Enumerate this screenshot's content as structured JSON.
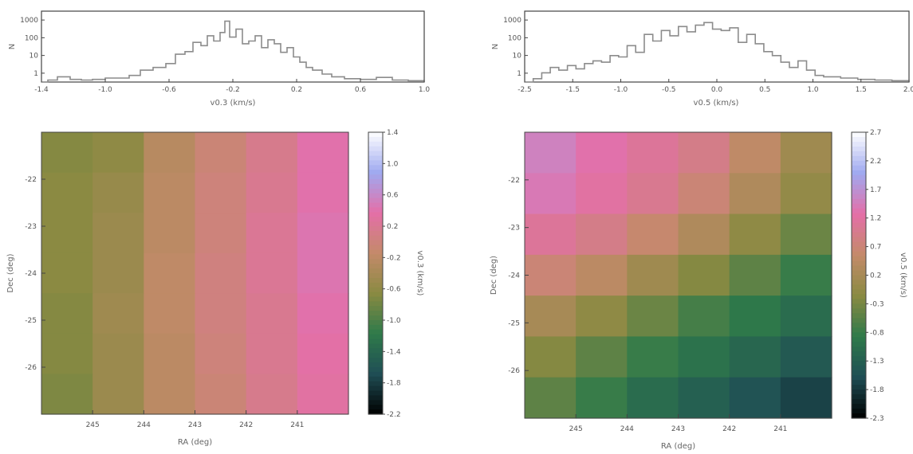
{
  "chart_data": [
    {
      "type": "line",
      "xlabel": "v0.3 (km/s)",
      "ylabel": "N",
      "xlim": [
        -1.4,
        1.0
      ],
      "ylim": [
        0,
        1.0
      ],
      "x_ticks": [
        "-1.4",
        "-1.0",
        "-0.6",
        "-0.2",
        "0.2",
        "0.6",
        "1.0"
      ],
      "y_ticks": [
        "1",
        "10",
        "100",
        "1000"
      ],
      "series": [
        {
          "x": [
            -1.4,
            -1.36,
            -1.3,
            -1.22,
            -1.15,
            -1.08,
            -1.0,
            -0.92,
            -0.85,
            -0.78,
            -0.7,
            -0.62,
            -0.56,
            -0.5,
            -0.45,
            -0.4,
            -0.36,
            -0.32,
            -0.28,
            -0.25,
            -0.22,
            -0.18,
            -0.14,
            -0.1,
            -0.06,
            -0.02,
            0.02,
            0.06,
            0.1,
            0.14,
            0.18,
            0.22,
            0.26,
            0.3,
            0.36,
            0.42,
            0.5,
            0.6,
            0.7,
            0.8,
            0.9,
            1.0
          ],
          "values": [
            0.0,
            0.03,
            0.08,
            0.04,
            0.03,
            0.04,
            0.06,
            0.06,
            0.1,
            0.18,
            0.22,
            0.28,
            0.42,
            0.46,
            0.6,
            0.55,
            0.7,
            0.62,
            0.75,
            0.92,
            0.68,
            0.8,
            0.58,
            0.62,
            0.7,
            0.52,
            0.64,
            0.58,
            0.45,
            0.52,
            0.38,
            0.3,
            0.22,
            0.18,
            0.12,
            0.08,
            0.05,
            0.04,
            0.07,
            0.03,
            0.02,
            0.0
          ]
        }
      ]
    },
    {
      "type": "line",
      "xlabel": "v0.5 (km/s)",
      "ylabel": "N",
      "xlim": [
        -2.5,
        2.0
      ],
      "ylim": [
        0,
        1.0
      ],
      "x_ticks": [
        "-2.5",
        "-1.5",
        "-1.0",
        "-0.5",
        "0.0",
        "0.5",
        "1.0",
        "1.5",
        "2.0"
      ],
      "y_ticks": [
        "1",
        "10",
        "100",
        "1000"
      ],
      "series": [
        {
          "x": [
            -2.5,
            -2.4,
            -2.3,
            -2.2,
            -2.1,
            -2.0,
            -1.9,
            -1.8,
            -1.7,
            -1.6,
            -1.5,
            -1.4,
            -1.3,
            -1.2,
            -1.1,
            -1.0,
            -0.9,
            -0.8,
            -0.7,
            -0.6,
            -0.5,
            -0.4,
            -0.3,
            -0.2,
            -0.1,
            0.0,
            0.1,
            0.2,
            0.3,
            0.4,
            0.5,
            0.6,
            0.7,
            0.8,
            0.9,
            1.0,
            1.2,
            1.4,
            1.6,
            1.8,
            2.0
          ],
          "values": [
            0.0,
            0.05,
            0.14,
            0.22,
            0.18,
            0.25,
            0.2,
            0.28,
            0.32,
            0.3,
            0.4,
            0.38,
            0.55,
            0.45,
            0.72,
            0.62,
            0.78,
            0.7,
            0.84,
            0.76,
            0.86,
            0.9,
            0.8,
            0.78,
            0.82,
            0.6,
            0.72,
            0.58,
            0.46,
            0.4,
            0.3,
            0.22,
            0.32,
            0.18,
            0.1,
            0.08,
            0.06,
            0.04,
            0.03,
            0.02,
            0.0
          ]
        }
      ]
    },
    {
      "type": "heatmap",
      "xlabel": "RA (deg)",
      "ylabel": "Dec (deg)",
      "colorbar_label": "v0.3 (km/s)",
      "x_ticks": [
        "245",
        "244",
        "243",
        "242",
        "241"
      ],
      "y_ticks": [
        "-26",
        "-25",
        "-24",
        "-23",
        "-22"
      ],
      "colorbar_ticks": [
        "1.4",
        "1.0",
        "0.6",
        "0.2",
        "-0.2",
        "-0.6",
        "-1.0",
        "-1.4",
        "-1.8",
        "-2.2"
      ],
      "colorscale": [
        "#000000",
        "#1f4e55",
        "#2f7a4a",
        "#8a8a42",
        "#c48a6a",
        "#e46fa8",
        "#9fa9f0",
        "#ffffff"
      ],
      "grid": false,
      "values": [
        [
          0.42,
          0.44,
          0.54,
          0.6,
          0.65,
          0.72
        ],
        [
          0.43,
          0.46,
          0.55,
          0.61,
          0.66,
          0.72
        ],
        [
          0.43,
          0.47,
          0.55,
          0.61,
          0.67,
          0.73
        ],
        [
          0.43,
          0.47,
          0.56,
          0.62,
          0.67,
          0.73
        ],
        [
          0.42,
          0.48,
          0.56,
          0.62,
          0.66,
          0.72
        ],
        [
          0.42,
          0.47,
          0.55,
          0.61,
          0.66,
          0.71
        ],
        [
          0.41,
          0.47,
          0.55,
          0.6,
          0.65,
          0.7
        ]
      ]
    },
    {
      "type": "heatmap",
      "xlabel": "RA (deg)",
      "ylabel": "Dec (deg)",
      "colorbar_label": "v0.5 (km/s)",
      "x_ticks": [
        "245",
        "244",
        "243",
        "242",
        "241"
      ],
      "y_ticks": [
        "-26",
        "-25",
        "-24",
        "-23",
        "-22"
      ],
      "colorbar_ticks": [
        "2.7",
        "2.2",
        "1.7",
        "1.2",
        "0.7",
        "0.2",
        "-0.3",
        "-0.8",
        "-1.3",
        "-1.8",
        "-2.3"
      ],
      "colorscale": [
        "#000000",
        "#1f4e55",
        "#2f7a4a",
        "#8a8a42",
        "#c48a6a",
        "#e46fa8",
        "#9fa9f0",
        "#ffffff"
      ],
      "grid": false,
      "values": [
        [
          0.76,
          0.72,
          0.68,
          0.64,
          0.56,
          0.48
        ],
        [
          0.74,
          0.7,
          0.66,
          0.6,
          0.52,
          0.45
        ],
        [
          0.68,
          0.64,
          0.58,
          0.52,
          0.44,
          0.38
        ],
        [
          0.6,
          0.55,
          0.48,
          0.42,
          0.36,
          0.3
        ],
        [
          0.5,
          0.44,
          0.38,
          0.32,
          0.28,
          0.24
        ],
        [
          0.42,
          0.36,
          0.3,
          0.26,
          0.22,
          0.18
        ],
        [
          0.36,
          0.3,
          0.24,
          0.2,
          0.16,
          0.12
        ]
      ]
    }
  ]
}
